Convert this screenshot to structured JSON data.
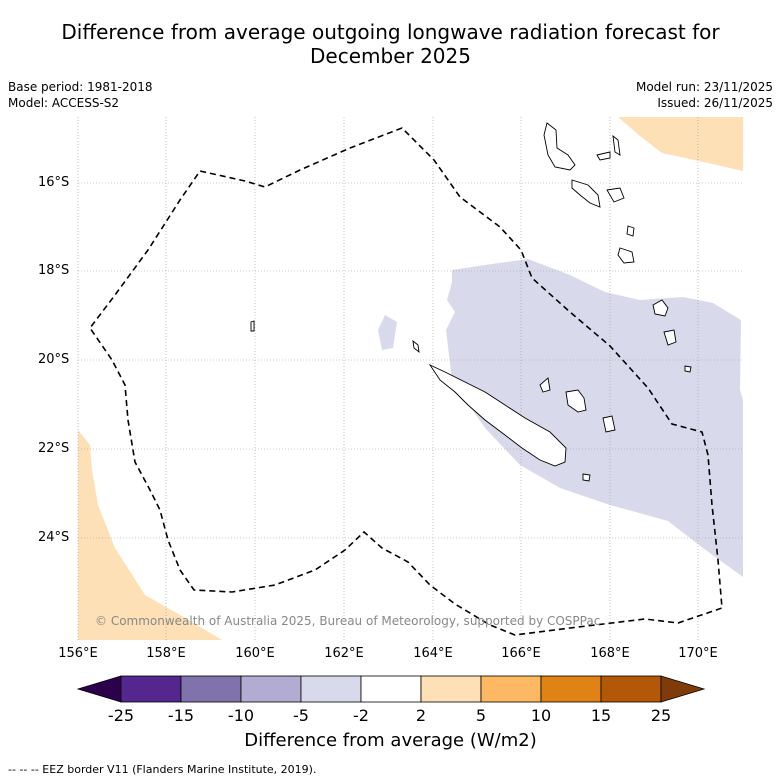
{
  "title": {
    "line1": "Difference from average outgoing longwave radiation forecast for",
    "line2": "December 2025"
  },
  "meta_left": {
    "base_period": "Base period: 1981-2018",
    "model": "Model: ACCESS-S2"
  },
  "meta_right": {
    "model_run": "Model run: 23/11/2025",
    "issued": "Issued: 26/11/2025"
  },
  "map": {
    "lat_labels": [
      "16°S",
      "18°S",
      "20°S",
      "22°S",
      "24°S"
    ],
    "lon_labels": [
      "156°E",
      "158°E",
      "160°E",
      "162°E",
      "164°E",
      "166°E",
      "168°E",
      "170°E"
    ],
    "copyright": "© Commonwealth of Australia 2025, Bureau of Meteorology, supported by COSPPac"
  },
  "colorbar": {
    "ticks": [
      "-25",
      "-15",
      "-10",
      "-5",
      "-2",
      "2",
      "5",
      "10",
      "15",
      "25"
    ],
    "colors": [
      "#54278f",
      "#8073ac",
      "#b2abd2",
      "#d8daeb",
      "#ffffff",
      "#fee0b6",
      "#fdb863",
      "#e08214",
      "#b35806"
    ],
    "under_color": "#2d004b",
    "over_color": "#7f3b08",
    "label": "Difference from average (W/m2)"
  },
  "footer": "-- -- -- EEZ border V11 (Flanders Marine Institute, 2019)."
}
